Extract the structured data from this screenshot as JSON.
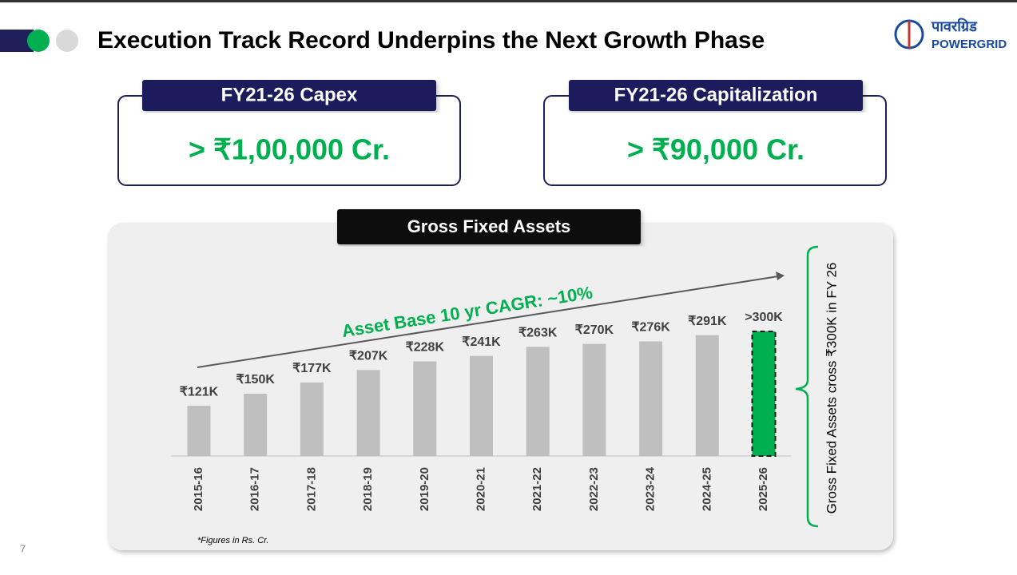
{
  "header": {
    "title": "Execution Track Record Underpins the Next Growth Phase",
    "logo_hindi": "पावरग्रिड",
    "logo_text": "POWERGRID"
  },
  "cards": [
    {
      "title": "FY21-26 Capex",
      "value": "> ₹1,00,000 Cr."
    },
    {
      "title": "FY21-26 Capitalization",
      "value": "> ₹90,000 Cr."
    }
  ],
  "chart_data": {
    "type": "bar",
    "title": "Gross Fixed Assets",
    "categories": [
      "2015-16",
      "2016-17",
      "2017-18",
      "2018-19",
      "2019-20",
      "2020-21",
      "2021-22",
      "2022-23",
      "2023-24",
      "2024-25",
      "2025-26"
    ],
    "values": [
      121,
      150,
      177,
      207,
      228,
      241,
      263,
      270,
      276,
      291,
      300
    ],
    "value_labels": [
      "₹121K",
      "₹150K",
      "₹177K",
      "₹207K",
      "₹228K",
      "₹241K",
      "₹263K",
      "₹270K",
      "₹276K",
      "₹291K",
      ">300K"
    ],
    "colors": [
      "#bfbfbf",
      "#bfbfbf",
      "#bfbfbf",
      "#bfbfbf",
      "#bfbfbf",
      "#bfbfbf",
      "#bfbfbf",
      "#bfbfbf",
      "#bfbfbf",
      "#bfbfbf",
      "#00b050"
    ],
    "annotation": "Asset Base 10 yr CAGR: ~10%",
    "side_note": "Gross Fixed Assets cross ₹300K in FY 26",
    "footnote": "*Figures in Rs. Cr."
  },
  "page_number": "7"
}
